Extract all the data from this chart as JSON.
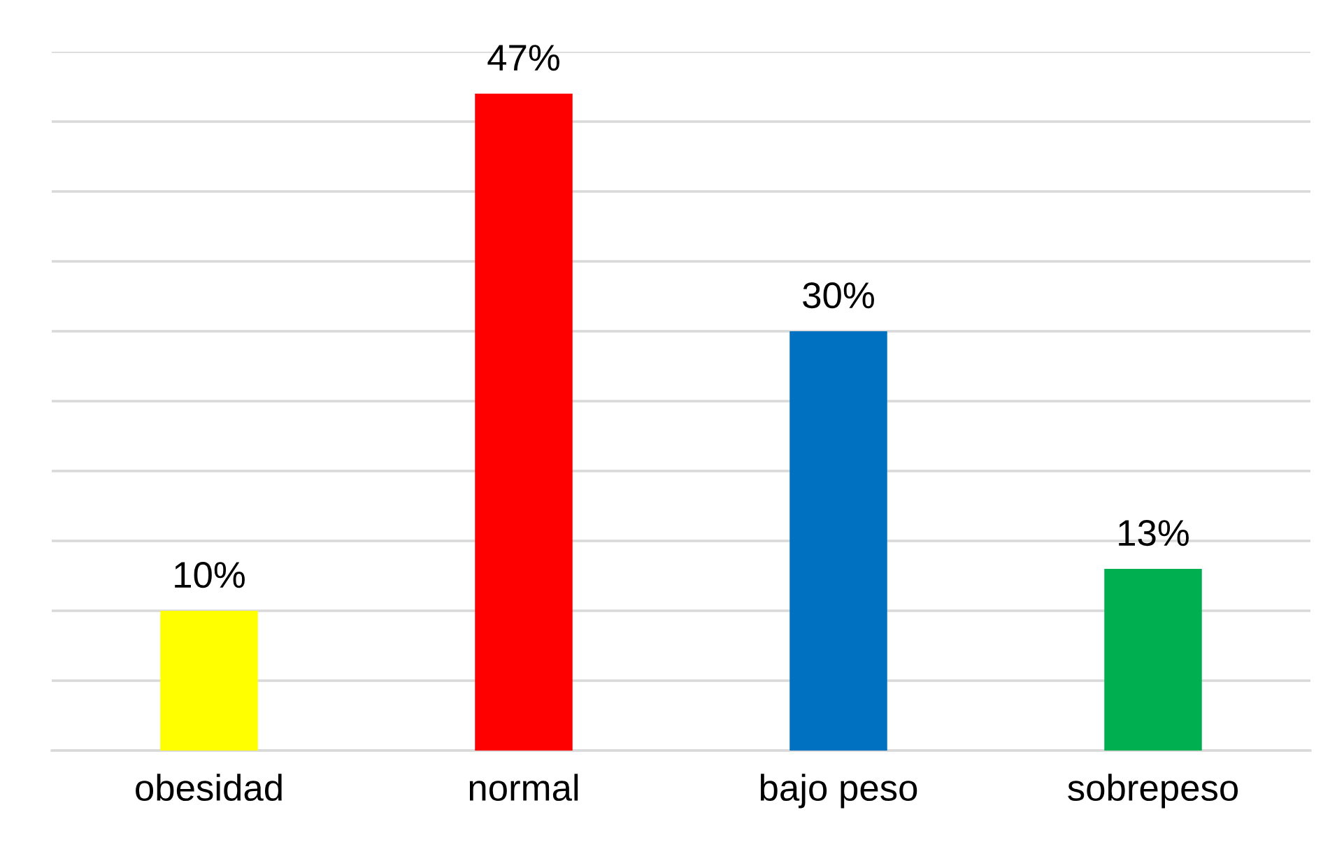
{
  "chart_data": {
    "type": "bar",
    "categories": [
      "obesidad",
      "normal",
      "bajo peso",
      "sobrepeso"
    ],
    "values": [
      10,
      47,
      30,
      13
    ],
    "colors": [
      "#ffff00",
      "#ff0000",
      "#0070c0",
      "#00b050"
    ],
    "value_labels": [
      "10%",
      "47%",
      "30%",
      "13%"
    ],
    "ylim": [
      0,
      50
    ],
    "yticks": [
      {
        "value": 0,
        "label": null
      },
      {
        "value": 5,
        "label": null
      },
      {
        "value": 10,
        "label": null
      },
      {
        "value": 15,
        "label": null
      },
      {
        "value": 20,
        "label": null
      },
      {
        "value": 25,
        "label": null
      },
      {
        "value": 30,
        "label": null
      },
      {
        "value": 35,
        "label": null
      },
      {
        "value": 40,
        "label": null
      },
      {
        "value": 45,
        "label": null
      },
      {
        "value": 50,
        "label": null
      }
    ],
    "grid": "y",
    "tick_labels": "x",
    "legend": false
  }
}
